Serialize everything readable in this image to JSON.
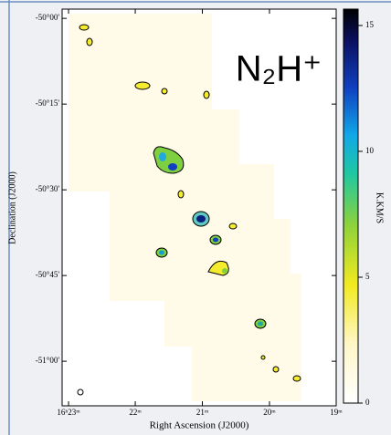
{
  "chart_data": {
    "type": "map",
    "title": "N₂H⁺",
    "x_label": "Right Ascension (J2000)",
    "y_label": "Declination (J2000)",
    "xlim": [
      16.3849,
      16.3167
    ],
    "xticks": [
      {
        "value": 16.3833,
        "label": "16ʰ23ᵐ"
      },
      {
        "value": 16.3667,
        "label": "22ᵐ"
      },
      {
        "value": 16.35,
        "label": "21ᵐ"
      },
      {
        "value": 16.3333,
        "label": "20ᵐ"
      },
      {
        "value": 16.3167,
        "label": "19ᵐ"
      }
    ],
    "ylim": [
      -49.973,
      -51.13
    ],
    "yticks": [
      {
        "value": -50.0,
        "label": "-50°00'"
      },
      {
        "value": -50.25,
        "label": "-50°15'"
      },
      {
        "value": -50.5,
        "label": "-50°30'"
      },
      {
        "value": -50.75,
        "label": "-50°45'"
      },
      {
        "value": -51.0,
        "label": "-51°00'"
      }
    ],
    "colorbar": {
      "label": "K.KM/S",
      "lim": [
        0,
        15.65
      ],
      "ticks": [
        0,
        5,
        10,
        15
      ]
    }
  }
}
